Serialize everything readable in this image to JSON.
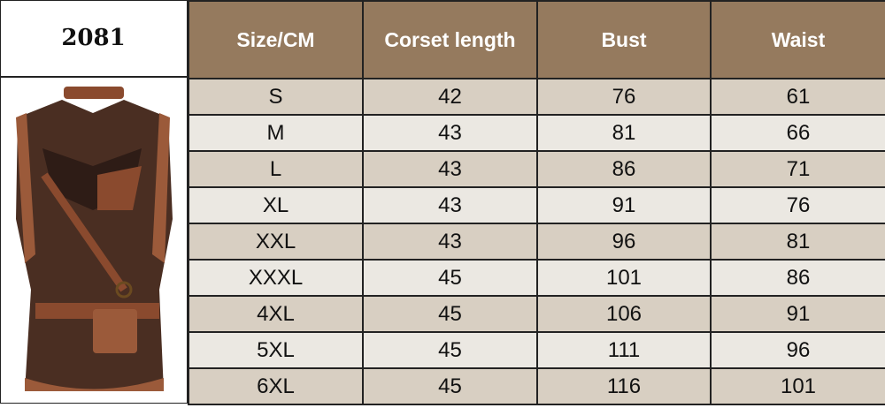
{
  "model": "2081",
  "product_image": "brown steampunk corset vest with buckles and belt pouch",
  "colors": {
    "header_bg": "#957a5e",
    "row_dark": "#d8cfc2",
    "row_light": "#ebe8e2"
  },
  "table": {
    "headers": [
      "Size/CM",
      "Corset length",
      "Bust",
      "Waist"
    ],
    "rows": [
      [
        "S",
        "42",
        "76",
        "61"
      ],
      [
        "M",
        "43",
        "81",
        "66"
      ],
      [
        "L",
        "43",
        "86",
        "71"
      ],
      [
        "XL",
        "43",
        "91",
        "76"
      ],
      [
        "XXL",
        "43",
        "96",
        "81"
      ],
      [
        "XXXL",
        "45",
        "101",
        "86"
      ],
      [
        "4XL",
        "45",
        "106",
        "91"
      ],
      [
        "5XL",
        "45",
        "111",
        "96"
      ],
      [
        "6XL",
        "45",
        "116",
        "101"
      ]
    ]
  }
}
